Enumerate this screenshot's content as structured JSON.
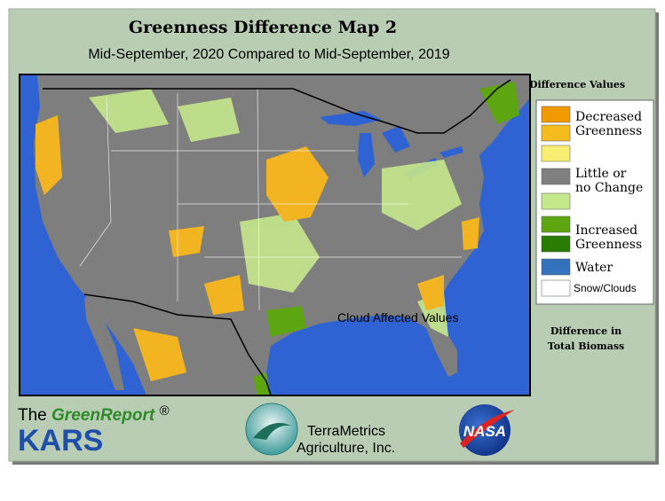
{
  "header": {
    "title": "Greenness Difference Map 2",
    "subtitle": "Mid-September, 2020 Compared to Mid-September, 2019"
  },
  "map": {
    "annotation": "Cloud Affected Values"
  },
  "legend": {
    "title": "Difference Values",
    "swatches": [
      "#f09a00",
      "#f5bc1e",
      "#f8ee72",
      "#808080",
      "#c6e88c",
      "#5ea512",
      "#2a7c00",
      "#3472bd",
      "#ffffff"
    ],
    "labels": [
      [
        "Decreased",
        "Greenness"
      ],
      [
        "Little or",
        "no Change"
      ],
      [
        "Increased",
        "Greenness"
      ],
      [
        "Water"
      ],
      [
        "Snow/Clouds"
      ]
    ],
    "note": [
      "Difference in",
      "Total Biomass"
    ]
  },
  "footer": {
    "greenreport": [
      "The",
      "GreenReport",
      "®"
    ],
    "kars": "KARS",
    "terrametrics": [
      "TerraMetrics",
      "Agriculture, Inc."
    ],
    "nasa": "NASA"
  }
}
